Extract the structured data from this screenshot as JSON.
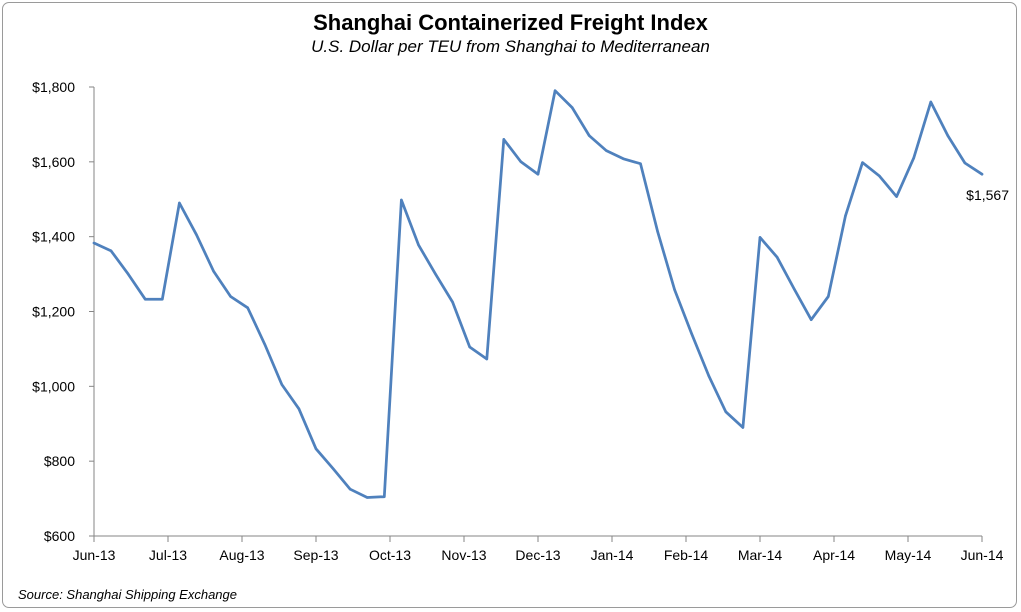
{
  "header": {
    "title": "Shanghai Containerized Freight Index",
    "subtitle": "U.S. Dollar per TEU from Shanghai to Mediterranean"
  },
  "footer": {
    "source": "Source: Shanghai Shipping Exchange"
  },
  "colors": {
    "line": "#4f81bd",
    "axis": "#868686"
  },
  "chart_data": {
    "type": "line",
    "title": "Shanghai Containerized Freight Index",
    "subtitle": "U.S. Dollar per TEU from Shanghai to Mediterranean",
    "xlabel": "",
    "ylabel": "",
    "ylim": [
      600,
      1800
    ],
    "yticks": [
      600,
      800,
      1000,
      1200,
      1400,
      1600,
      1800
    ],
    "ytick_labels": [
      "$600",
      "$800",
      "$1,000",
      "$1,200",
      "$1,400",
      "$1,600",
      "$1,800"
    ],
    "xticks": [
      "Jun-13",
      "Jul-13",
      "Aug-13",
      "Sep-13",
      "Oct-13",
      "Nov-13",
      "Dec-13",
      "Jan-14",
      "Feb-14",
      "Mar-14",
      "Apr-14",
      "May-14",
      "Jun-14"
    ],
    "grid": false,
    "legend": "none",
    "series": [
      {
        "values": [
          1383,
          1362,
          1300,
          1233,
          1233,
          1490,
          1405,
          1308,
          1240,
          1210,
          1112,
          1005,
          940,
          833,
          780,
          725,
          703,
          705,
          1498,
          1378,
          1300,
          1225,
          1105,
          1073,
          1660,
          1600,
          1567,
          1790,
          1745,
          1670,
          1630,
          1608,
          1595,
          1415,
          1258,
          1140,
          1028,
          932,
          890,
          1398,
          1345,
          1260,
          1178,
          1240,
          1455,
          1598,
          1562,
          1507,
          1610,
          1760,
          1670,
          1597,
          1567
        ]
      }
    ],
    "annotations": [
      {
        "text": "$1,567",
        "point_index": 52
      }
    ]
  }
}
